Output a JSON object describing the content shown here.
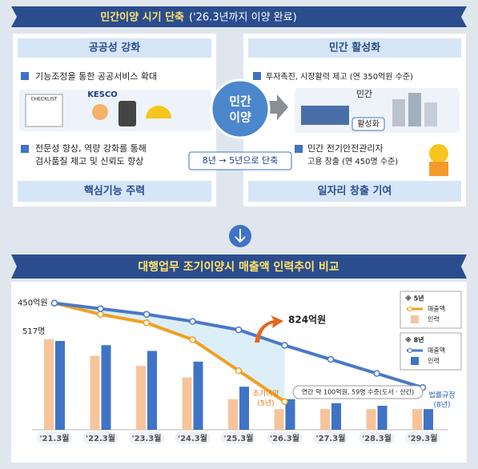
{
  "header": {
    "title": "민간이양 시기 단축",
    "subtitle": "('26.3년까지 이양 완료)"
  },
  "left_panel": {
    "title": "공공성 강화",
    "items": [
      [
        "기능조정을 통한 공공서비스 확대"
      ],
      [
        "전문성 향상, 역량 강화를 통해",
        "검사품질 제고 및 신뢰도 향상"
      ]
    ],
    "image_labels": [
      "CHECKLIST",
      "KESCO"
    ],
    "footer": "핵심기능 주력"
  },
  "center": {
    "label": [
      "민간",
      "이양"
    ],
    "note": "8년 → 5년으로 단축"
  },
  "right_panel": {
    "title": "민간 활성화",
    "items": [
      [
        "투자촉진, 시장활력 제고 (연 350억원 수준)"
      ],
      [
        "민간 전기안전관리자",
        "고용 창출 (연 450명 수준)"
      ]
    ],
    "image_labels": [
      "민간",
      "활성화"
    ],
    "footer": "일자리 창출 기여"
  },
  "chart_data": {
    "type": "combo",
    "title": "대행업무 조기이양시 매출액 인력추이 비교",
    "categories": [
      "'21.3월",
      "'22.3월",
      "'23.3월",
      "'24.3월",
      "'25.3월",
      "'26.3월",
      "'27.3월",
      "'28.3월",
      "'29.3월"
    ],
    "groups": [
      "※ 5년",
      "※ 8년"
    ],
    "series": [
      {
        "name": "매출액",
        "group": 0,
        "kind": "line",
        "axis": "y2",
        "color": "#f0a020",
        "values": [
          450,
          410,
          380,
          320,
          210,
          100,
          null,
          null,
          null
        ]
      },
      {
        "name": "인력",
        "group": 0,
        "kind": "bar",
        "color": "#f7c49a",
        "values": [
          517,
          422,
          365,
          299,
          175,
          118,
          118,
          118,
          118
        ]
      },
      {
        "name": "매출액",
        "group": 1,
        "kind": "line",
        "axis": "y2",
        "color": "#4a78c8",
        "values": [
          450,
          430,
          410,
          385,
          355,
          300,
          250,
          200,
          150
        ]
      },
      {
        "name": "인력",
        "group": 1,
        "kind": "bar",
        "color": "#3f73c6",
        "values": [
          507,
          483,
          450,
          389,
          246,
          175,
          152,
          137,
          118
        ]
      }
    ],
    "ylim": [
      0,
      900
    ],
    "y2lim": [
      0,
      560
    ],
    "annotations": {
      "start_revenue": "450억원",
      "start_staff": "517명",
      "gap": "824억원",
      "floor": "연간 약 100억원, 59명 수준(도서 · 산간)",
      "early": [
        "조기이양",
        "(5년)"
      ],
      "legal": [
        "법률규정",
        "(8년)"
      ]
    }
  }
}
